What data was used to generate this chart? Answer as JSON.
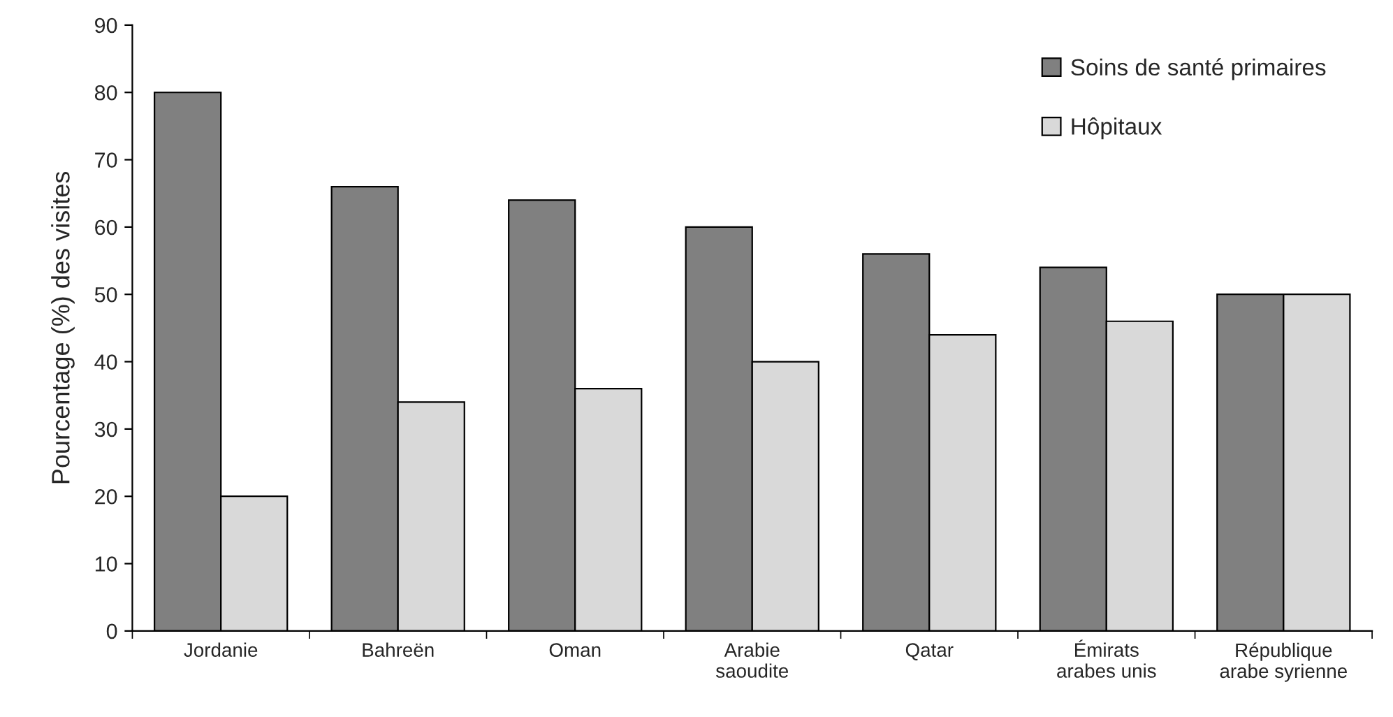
{
  "chart_data": {
    "type": "bar",
    "ylabel": "Pourcentage (%) des visites",
    "categories": [
      "Jordanie",
      "Bahreën",
      "Oman",
      "Arabie\nsaoudite",
      "Qatar",
      "Émirats\narabes unis",
      "République\narabe syrienne"
    ],
    "series": [
      {
        "name": "Soins de santé primaires",
        "color": "#808080",
        "values": [
          80,
          66,
          64,
          60,
          56,
          54,
          50
        ]
      },
      {
        "name": "Hôpitaux",
        "color": "#d9d9d9",
        "values": [
          20,
          34,
          36,
          40,
          44,
          46,
          50
        ]
      }
    ],
    "ylim": [
      0,
      90
    ],
    "yticks": [
      0,
      10,
      20,
      30,
      40,
      50,
      60,
      70,
      80,
      90
    ],
    "grid": false,
    "legend": "top right"
  }
}
